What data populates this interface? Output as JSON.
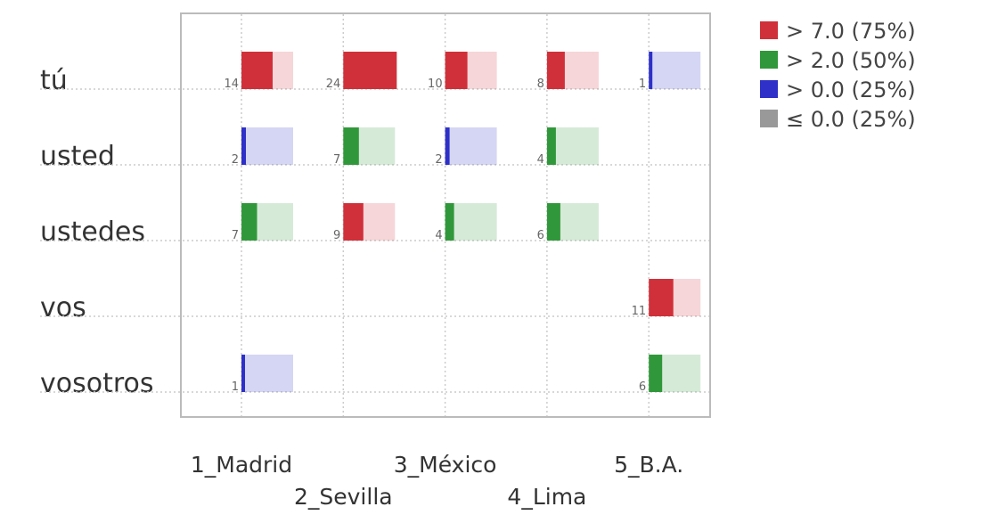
{
  "chart_data": {
    "type": "bar-matrix",
    "categories": [
      "1_Madrid",
      "2_Sevilla",
      "3_México",
      "4_Lima",
      "5_B.A."
    ],
    "series": [
      {
        "name": "tú",
        "values": [
          14,
          24,
          10,
          8,
          1
        ]
      },
      {
        "name": "usted",
        "values": [
          2,
          7,
          2,
          4,
          null
        ]
      },
      {
        "name": "ustedes",
        "values": [
          7,
          9,
          4,
          6,
          null
        ]
      },
      {
        "name": "vos",
        "values": [
          null,
          null,
          null,
          null,
          11
        ]
      },
      {
        "name": "vosotros",
        "values": [
          1,
          null,
          null,
          null,
          6
        ]
      }
    ],
    "legend": [
      {
        "label": "> 7.0 (75%)",
        "threshold": 7.0,
        "color": "#d0303a"
      },
      {
        "label": "> 2.0 (50%)",
        "threshold": 2.0,
        "color": "#30983a"
      },
      {
        "label": "> 0.0 (25%)",
        "threshold": 0.0,
        "color": "#2e30c8"
      },
      {
        "label": "≤ 0.0 (25%)",
        "color": "#999999"
      }
    ],
    "grid": true
  }
}
